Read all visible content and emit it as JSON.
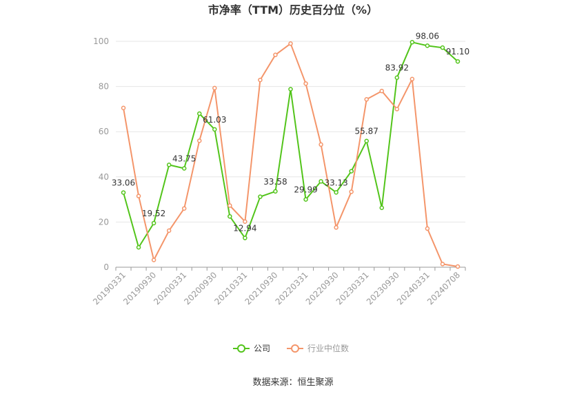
{
  "chart_data": {
    "type": "line",
    "title": "市净率（TTM）历史百分位（%）",
    "xlabel": "",
    "ylabel": "",
    "ylim": [
      0,
      100
    ],
    "yticks": [
      0,
      20,
      40,
      60,
      80,
      100
    ],
    "x": [
      "20190331",
      "20190630",
      "20190930",
      "20191231",
      "20200331",
      "20200630",
      "20200930",
      "20201231",
      "20210331",
      "20210630",
      "20210930",
      "20211231",
      "20220331",
      "20220630",
      "20220930",
      "20221231",
      "20230331",
      "20230630",
      "20230930",
      "20231231",
      "20240331",
      "20240630",
      "20240708"
    ],
    "xtick_labels": [
      "20190331",
      "",
      "20190930",
      "",
      "20200331",
      "",
      "20200930",
      "",
      "20210331",
      "",
      "20210930",
      "",
      "20220331",
      "",
      "20220930",
      "",
      "20230331",
      "",
      "20230930",
      "",
      "20240331",
      "",
      "20240708"
    ],
    "grid": true,
    "legend_position": "bottom",
    "series": [
      {
        "name": "公司",
        "color": "#52c41a",
        "values": [
          33.06,
          8.8,
          19.52,
          45.3,
          43.75,
          68.0,
          61.03,
          22.5,
          12.94,
          31.2,
          33.58,
          78.8,
          29.99,
          38.0,
          33.13,
          42.5,
          55.87,
          26.3,
          83.92,
          99.6,
          98.06,
          97.2,
          91.1
        ],
        "data_labels": [
          "33.06",
          "",
          "19.52",
          "",
          "43.75",
          "",
          "61.03",
          "",
          "12.94",
          "",
          "33.58",
          "",
          "29.99",
          "",
          "33.13",
          "",
          "55.87",
          "",
          "83.92",
          "",
          "98.06",
          "",
          "91.10"
        ]
      },
      {
        "name": "行业中位数",
        "color": "#f4956a",
        "values": [
          70.5,
          31.5,
          3.2,
          16.2,
          26.0,
          56.0,
          79.3,
          27.3,
          20.2,
          82.9,
          94.0,
          99.0,
          81.3,
          54.3,
          17.6,
          33.4,
          74.3,
          78.0,
          70.0,
          83.3,
          17.1,
          1.4,
          0.3
        ]
      }
    ]
  },
  "footer": {
    "source": "数据来源：恒生聚源"
  }
}
